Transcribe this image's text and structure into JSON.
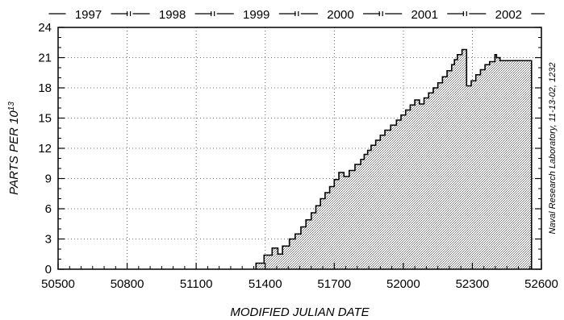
{
  "chart_data": {
    "type": "area",
    "title": "",
    "xlabel": "MODIFIED JULIAN DATE",
    "ylabel": {
      "text": "PARTS PER 10",
      "superscript": "13"
    },
    "credit": "Naval Research Laboratory, 11-13-02, 1232",
    "xlim": [
      50500,
      52600
    ],
    "ylim": [
      0,
      24
    ],
    "x_ticks": [
      50500,
      50800,
      51100,
      51400,
      51700,
      52000,
      52300,
      52600
    ],
    "y_ticks": [
      0,
      3,
      6,
      9,
      12,
      15,
      18,
      21,
      24
    ],
    "x_tick_labels": [
      "50500",
      "50800",
      "51100",
      "51400",
      "51700",
      "52000",
      "52300",
      "52600"
    ],
    "y_tick_labels": [
      "0",
      "3",
      "6",
      "9",
      "12",
      "15",
      "18",
      "21",
      "24"
    ],
    "grid": true,
    "years": [
      {
        "label": "1997",
        "start": 50449,
        "end": 50814
      },
      {
        "label": "1998",
        "start": 50814,
        "end": 51179
      },
      {
        "label": "1999",
        "start": 51179,
        "end": 51544
      },
      {
        "label": "2000",
        "start": 51544,
        "end": 51910
      },
      {
        "label": "2001",
        "start": 51910,
        "end": 52275
      },
      {
        "label": "2002",
        "start": 52275,
        "end": 52640
      }
    ],
    "series": [
      {
        "step": "post",
        "x": [
          51360,
          51395,
          51430,
          51455,
          51475,
          51505,
          51530,
          51555,
          51577,
          51600,
          51620,
          51640,
          51660,
          51680,
          51700,
          51720,
          51742,
          51765,
          51790,
          51815,
          51830,
          51845,
          51860,
          51880,
          51900,
          51920,
          51945,
          51970,
          51990,
          52010,
          52030,
          52050,
          52070,
          52090,
          52110,
          52130,
          52150,
          52170,
          52190,
          52210,
          52222,
          52235,
          52255,
          52275,
          52295,
          52315,
          52335,
          52355,
          52375,
          52398,
          52405,
          52420,
          52440,
          52460,
          52480,
          52500,
          52515,
          52530,
          52545
        ],
        "y": [
          0.6,
          1.4,
          2.1,
          1.5,
          2.3,
          3.0,
          3.5,
          4.2,
          4.9,
          5.6,
          6.3,
          7.0,
          7.6,
          8.2,
          8.9,
          9.6,
          9.2,
          9.8,
          10.4,
          10.9,
          11.4,
          11.8,
          12.3,
          12.8,
          13.3,
          13.8,
          14.3,
          14.8,
          15.3,
          15.8,
          16.3,
          16.8,
          16.4,
          17.0,
          17.5,
          18.0,
          18.5,
          19.1,
          19.7,
          20.3,
          20.8,
          21.3,
          21.8,
          18.2,
          18.7,
          19.3,
          19.8,
          20.3,
          20.6,
          21.3,
          21.0,
          20.7,
          20.7,
          20.7,
          20.7,
          20.7,
          20.7,
          20.7,
          20.7
        ]
      }
    ]
  }
}
